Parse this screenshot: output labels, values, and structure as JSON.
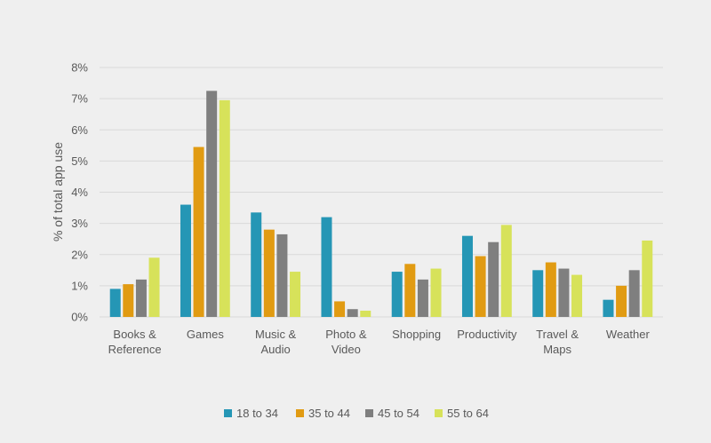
{
  "chart_data": {
    "type": "bar",
    "title": "",
    "xlabel": "",
    "ylabel": "% of total app use",
    "ylim": [
      0,
      8
    ],
    "y_ticks": [
      "0%",
      "1%",
      "2%",
      "3%",
      "4%",
      "5%",
      "6%",
      "7%",
      "8%"
    ],
    "grid": true,
    "legend_position": "bottom",
    "categories": [
      [
        "Books &",
        "Reference"
      ],
      [
        "Games"
      ],
      [
        "Music &",
        "Audio"
      ],
      [
        "Photo &",
        "Video"
      ],
      [
        "Shopping"
      ],
      [
        "Productivity"
      ],
      [
        "Travel &",
        "Maps"
      ],
      [
        "Weather"
      ]
    ],
    "series": [
      {
        "name": "18 to 34",
        "color": "#2596b5",
        "values": [
          0.9,
          3.6,
          3.35,
          3.2,
          1.45,
          2.6,
          1.5,
          0.55
        ]
      },
      {
        "name": "35 to 44",
        "color": "#e19b12",
        "values": [
          1.05,
          5.45,
          2.8,
          0.5,
          1.7,
          1.95,
          1.75,
          1.0
        ]
      },
      {
        "name": "45 to 54",
        "color": "#7f7f7f",
        "values": [
          1.2,
          7.25,
          2.65,
          0.25,
          1.2,
          2.4,
          1.55,
          1.5
        ]
      },
      {
        "name": "55 to 64",
        "color": "#d7e25a",
        "values": [
          1.9,
          6.95,
          1.45,
          0.2,
          1.55,
          2.95,
          1.35,
          2.45
        ]
      }
    ]
  }
}
